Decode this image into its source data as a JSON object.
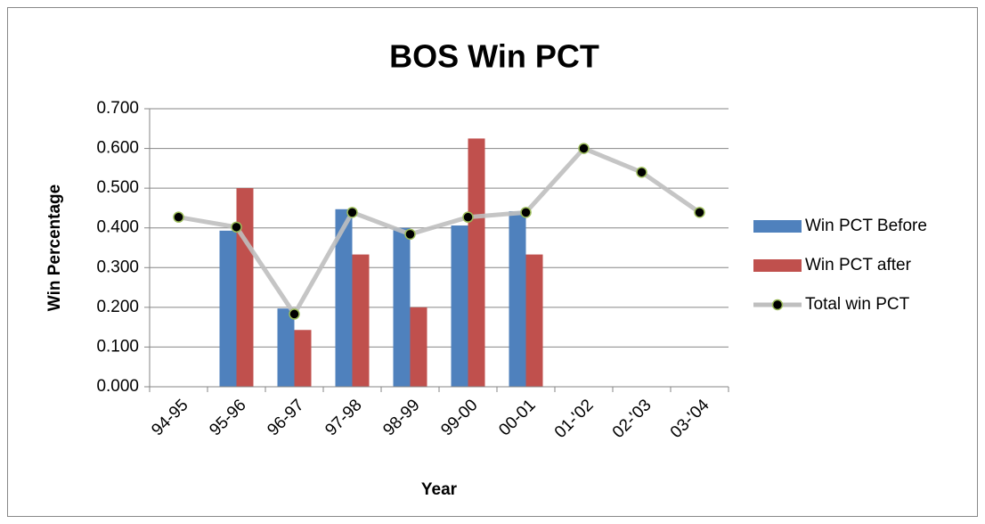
{
  "chart_data": {
    "type": "bar-line",
    "title": "BOS Win PCT",
    "x_label": "Year",
    "y_label": "Win Percentage",
    "categories": [
      "94-95",
      "95-96",
      "96-97",
      "97-98",
      "98-99",
      "99-00",
      "00-01",
      "01-'02",
      "02-'03",
      "03-'04"
    ],
    "series": [
      {
        "name": "Win PCT Before",
        "type": "bar",
        "color": "#4f81bd",
        "values": [
          null,
          0.393,
          0.197,
          0.447,
          0.4,
          0.406,
          0.442,
          null,
          null,
          null
        ]
      },
      {
        "name": "Win PCT after",
        "type": "bar",
        "color": "#c0504d",
        "values": [
          null,
          0.5,
          0.143,
          0.333,
          0.2,
          0.625,
          0.333,
          null,
          null,
          null
        ]
      },
      {
        "name": "Total win PCT",
        "type": "line",
        "color": "#bfbfbf",
        "marker_color": "#000000",
        "values": [
          0.427,
          0.402,
          0.183,
          0.439,
          0.384,
          0.427,
          0.439,
          0.6,
          0.54,
          0.439
        ]
      }
    ],
    "ylim": [
      0,
      0.7
    ],
    "yticks": [
      {
        "value": 0,
        "label": "0.000"
      },
      {
        "value": 0.1,
        "label": "0.100"
      },
      {
        "value": 0.2,
        "label": "0.200"
      },
      {
        "value": 0.3,
        "label": "0.300"
      },
      {
        "value": 0.4,
        "label": "0.400"
      },
      {
        "value": 0.5,
        "label": "0.500"
      },
      {
        "value": 0.6,
        "label": "0.600"
      },
      {
        "value": 0.7,
        "label": "0.700"
      }
    ],
    "grid": true,
    "legend": "right"
  }
}
